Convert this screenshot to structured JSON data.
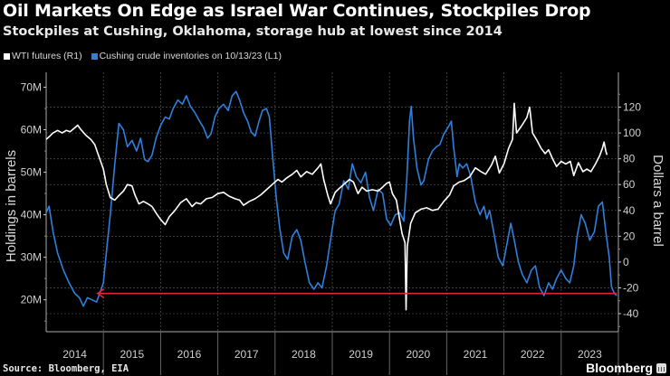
{
  "header": {
    "title": "Oil Markets On Edge as Israel War Continues, Stockpiles Drop",
    "subtitle": "Stockpiles at Cushing, Oklahoma, storage hub at lowest since 2014"
  },
  "footer": {
    "source": "Source: Bloomberg, EIA",
    "brand": "Bloomberg"
  },
  "colors": {
    "background": "#000000",
    "wti": "#ffffff",
    "cushing": "#2f7fdc",
    "arrow": "#e0253c",
    "grid": "#555555"
  },
  "chart_data": {
    "type": "line",
    "title": "Oil Markets On Edge as Israel War Continues, Stockpiles Drop",
    "subtitle": "Stockpiles at Cushing, Oklahoma, storage hub at lowest since 2014",
    "xlabel": "",
    "ylabel_left": "Holdings in barrels",
    "ylabel_right": "Dollars a barrel",
    "x_tick_labels": [
      "2014",
      "2015",
      "2016",
      "2017",
      "2018",
      "2019",
      "2020",
      "2021",
      "2022",
      "2023"
    ],
    "xlim": [
      2014.0,
      2024.0
    ],
    "ylim_left": [
      12.5,
      73.5
    ],
    "ylim_right": [
      -54,
      147
    ],
    "left_ticks": [
      20,
      30,
      40,
      50,
      60,
      70
    ],
    "left_tick_labels": [
      "20M",
      "30M",
      "40M",
      "50M",
      "60M",
      "70M"
    ],
    "right_ticks": [
      -40,
      -20,
      0,
      20,
      40,
      60,
      80,
      100,
      120
    ],
    "right_tick_labels": [
      "-40",
      "-20",
      "0",
      "20",
      "40",
      "60",
      "80",
      "100",
      "120"
    ],
    "grid": true,
    "legend_position": "top-left",
    "series": [
      {
        "name": "WTI futures (R1)",
        "axis": "right",
        "unit": "USD per barrel",
        "points": [
          [
            2014.0,
            95
          ],
          [
            2014.05,
            97
          ],
          [
            2014.12,
            100
          ],
          [
            2014.2,
            102
          ],
          [
            2014.28,
            100
          ],
          [
            2014.35,
            102
          ],
          [
            2014.42,
            101
          ],
          [
            2014.5,
            104
          ],
          [
            2014.55,
            106
          ],
          [
            2014.6,
            103
          ],
          [
            2014.7,
            98
          ],
          [
            2014.78,
            95
          ],
          [
            2014.85,
            91
          ],
          [
            2014.92,
            82
          ],
          [
            2015.0,
            72
          ],
          [
            2015.05,
            60
          ],
          [
            2015.12,
            50
          ],
          [
            2015.2,
            48
          ],
          [
            2015.26,
            51
          ],
          [
            2015.35,
            55
          ],
          [
            2015.42,
            60
          ],
          [
            2015.5,
            59
          ],
          [
            2015.55,
            52
          ],
          [
            2015.62,
            45
          ],
          [
            2015.7,
            47
          ],
          [
            2015.78,
            45
          ],
          [
            2015.85,
            43
          ],
          [
            2015.92,
            38
          ],
          [
            2016.0,
            33
          ],
          [
            2016.08,
            29
          ],
          [
            2016.15,
            35
          ],
          [
            2016.25,
            40
          ],
          [
            2016.35,
            46
          ],
          [
            2016.45,
            49
          ],
          [
            2016.55,
            43
          ],
          [
            2016.62,
            46
          ],
          [
            2016.7,
            45
          ],
          [
            2016.8,
            49
          ],
          [
            2016.9,
            50
          ],
          [
            2017.0,
            53
          ],
          [
            2017.1,
            54
          ],
          [
            2017.2,
            51
          ],
          [
            2017.3,
            49
          ],
          [
            2017.38,
            48
          ],
          [
            2017.45,
            44
          ],
          [
            2017.55,
            47
          ],
          [
            2017.65,
            49
          ],
          [
            2017.75,
            52
          ],
          [
            2017.85,
            56
          ],
          [
            2017.95,
            60
          ],
          [
            2018.05,
            64
          ],
          [
            2018.12,
            62
          ],
          [
            2018.2,
            65
          ],
          [
            2018.3,
            68
          ],
          [
            2018.38,
            71
          ],
          [
            2018.45,
            66
          ],
          [
            2018.55,
            70
          ],
          [
            2018.65,
            68
          ],
          [
            2018.75,
            73
          ],
          [
            2018.8,
            76
          ],
          [
            2018.85,
            64
          ],
          [
            2018.92,
            52
          ],
          [
            2018.97,
            45
          ],
          [
            2019.05,
            54
          ],
          [
            2019.12,
            57
          ],
          [
            2019.2,
            60
          ],
          [
            2019.3,
            64
          ],
          [
            2019.37,
            62
          ],
          [
            2019.45,
            53
          ],
          [
            2019.52,
            58
          ],
          [
            2019.6,
            55
          ],
          [
            2019.7,
            56
          ],
          [
            2019.8,
            55
          ],
          [
            2019.88,
            58
          ],
          [
            2019.95,
            61
          ],
          [
            2020.0,
            62
          ],
          [
            2020.05,
            53
          ],
          [
            2020.12,
            48
          ],
          [
            2020.18,
            32
          ],
          [
            2020.22,
            22
          ],
          [
            2020.27,
            15
          ],
          [
            2020.29,
            -37
          ],
          [
            2020.31,
            12
          ],
          [
            2020.37,
            30
          ],
          [
            2020.45,
            38
          ],
          [
            2020.55,
            41
          ],
          [
            2020.65,
            42
          ],
          [
            2020.75,
            40
          ],
          [
            2020.85,
            41
          ],
          [
            2020.95,
            47
          ],
          [
            2021.05,
            52
          ],
          [
            2021.12,
            59
          ],
          [
            2021.22,
            62
          ],
          [
            2021.3,
            63
          ],
          [
            2021.4,
            66
          ],
          [
            2021.5,
            73
          ],
          [
            2021.6,
            70
          ],
          [
            2021.68,
            68
          ],
          [
            2021.78,
            75
          ],
          [
            2021.85,
            82
          ],
          [
            2021.92,
            69
          ],
          [
            2022.0,
            76
          ],
          [
            2022.08,
            88
          ],
          [
            2022.15,
            95
          ],
          [
            2022.18,
            123
          ],
          [
            2022.22,
            100
          ],
          [
            2022.3,
            105
          ],
          [
            2022.4,
            112
          ],
          [
            2022.45,
            120
          ],
          [
            2022.5,
            100
          ],
          [
            2022.58,
            94
          ],
          [
            2022.65,
            88
          ],
          [
            2022.72,
            84
          ],
          [
            2022.78,
            87
          ],
          [
            2022.85,
            80
          ],
          [
            2022.92,
            74
          ],
          [
            2023.0,
            78
          ],
          [
            2023.08,
            76
          ],
          [
            2023.16,
            78
          ],
          [
            2023.22,
            67
          ],
          [
            2023.3,
            77
          ],
          [
            2023.38,
            70
          ],
          [
            2023.45,
            72
          ],
          [
            2023.52,
            70
          ],
          [
            2023.6,
            76
          ],
          [
            2023.67,
            82
          ],
          [
            2023.72,
            88
          ],
          [
            2023.75,
            93
          ],
          [
            2023.78,
            86
          ],
          [
            2023.8,
            83
          ]
        ]
      },
      {
        "name": "Cushing crude inventories on 10/13/23 (L1)",
        "axis": "left",
        "unit": "million barrels",
        "points": [
          [
            2014.0,
            40.5
          ],
          [
            2014.05,
            42
          ],
          [
            2014.12,
            36
          ],
          [
            2014.2,
            31
          ],
          [
            2014.3,
            27
          ],
          [
            2014.4,
            24
          ],
          [
            2014.5,
            21.5
          ],
          [
            2014.58,
            20.5
          ],
          [
            2014.65,
            18.5
          ],
          [
            2014.72,
            20.5
          ],
          [
            2014.8,
            20
          ],
          [
            2014.88,
            19.5
          ],
          [
            2014.95,
            22
          ],
          [
            2015.0,
            24
          ],
          [
            2015.05,
            31
          ],
          [
            2015.12,
            40
          ],
          [
            2015.2,
            52
          ],
          [
            2015.27,
            61.5
          ],
          [
            2015.35,
            60
          ],
          [
            2015.42,
            56
          ],
          [
            2015.5,
            57.5
          ],
          [
            2015.58,
            55
          ],
          [
            2015.65,
            58
          ],
          [
            2015.72,
            53
          ],
          [
            2015.78,
            52.5
          ],
          [
            2015.85,
            54
          ],
          [
            2015.92,
            58
          ],
          [
            2016.0,
            61
          ],
          [
            2016.08,
            63
          ],
          [
            2016.15,
            62.5
          ],
          [
            2016.22,
            65
          ],
          [
            2016.3,
            67
          ],
          [
            2016.38,
            66
          ],
          [
            2016.45,
            68
          ],
          [
            2016.52,
            65.5
          ],
          [
            2016.6,
            64
          ],
          [
            2016.68,
            62
          ],
          [
            2016.75,
            60.5
          ],
          [
            2016.82,
            58
          ],
          [
            2016.88,
            59
          ],
          [
            2016.95,
            63
          ],
          [
            2017.02,
            65
          ],
          [
            2017.1,
            66
          ],
          [
            2017.18,
            64.5
          ],
          [
            2017.25,
            68
          ],
          [
            2017.32,
            69
          ],
          [
            2017.38,
            67
          ],
          [
            2017.45,
            64
          ],
          [
            2017.52,
            62
          ],
          [
            2017.58,
            59.5
          ],
          [
            2017.65,
            58.5
          ],
          [
            2017.72,
            62
          ],
          [
            2017.78,
            64.5
          ],
          [
            2017.85,
            65
          ],
          [
            2017.9,
            63
          ],
          [
            2017.95,
            55
          ],
          [
            2018.02,
            44
          ],
          [
            2018.08,
            37
          ],
          [
            2018.15,
            31
          ],
          [
            2018.22,
            29.5
          ],
          [
            2018.3,
            35
          ],
          [
            2018.38,
            36.5
          ],
          [
            2018.45,
            34
          ],
          [
            2018.52,
            29
          ],
          [
            2018.6,
            24
          ],
          [
            2018.68,
            22.5
          ],
          [
            2018.75,
            24
          ],
          [
            2018.82,
            22.8
          ],
          [
            2018.9,
            28
          ],
          [
            2018.98,
            35
          ],
          [
            2019.05,
            41
          ],
          [
            2019.12,
            42.5
          ],
          [
            2019.2,
            48
          ],
          [
            2019.28,
            46
          ],
          [
            2019.35,
            52
          ],
          [
            2019.42,
            49
          ],
          [
            2019.5,
            47.5
          ],
          [
            2019.58,
            50
          ],
          [
            2019.65,
            44
          ],
          [
            2019.72,
            41
          ],
          [
            2019.8,
            46
          ],
          [
            2019.88,
            45
          ],
          [
            2019.95,
            39
          ],
          [
            2020.02,
            37.5
          ],
          [
            2020.1,
            40
          ],
          [
            2020.18,
            40.5
          ],
          [
            2020.25,
            38.5
          ],
          [
            2020.3,
            48
          ],
          [
            2020.35,
            62
          ],
          [
            2020.38,
            65.5
          ],
          [
            2020.42,
            58
          ],
          [
            2020.48,
            51
          ],
          [
            2020.55,
            47
          ],
          [
            2020.6,
            48
          ],
          [
            2020.68,
            53
          ],
          [
            2020.75,
            55
          ],
          [
            2020.82,
            56
          ],
          [
            2020.88,
            56.5
          ],
          [
            2020.95,
            59
          ],
          [
            2021.02,
            60.5
          ],
          [
            2021.08,
            62
          ],
          [
            2021.12,
            56
          ],
          [
            2021.18,
            49
          ],
          [
            2021.22,
            52
          ],
          [
            2021.28,
            51
          ],
          [
            2021.35,
            52
          ],
          [
            2021.42,
            49
          ],
          [
            2021.5,
            43
          ],
          [
            2021.58,
            40
          ],
          [
            2021.65,
            42
          ],
          [
            2021.7,
            39
          ],
          [
            2021.75,
            41
          ],
          [
            2021.82,
            36
          ],
          [
            2021.9,
            30
          ],
          [
            2021.98,
            28
          ],
          [
            2022.05,
            33
          ],
          [
            2022.12,
            38
          ],
          [
            2022.18,
            34
          ],
          [
            2022.25,
            29
          ],
          [
            2022.32,
            26
          ],
          [
            2022.4,
            24
          ],
          [
            2022.48,
            27
          ],
          [
            2022.55,
            28
          ],
          [
            2022.62,
            23
          ],
          [
            2022.7,
            21
          ],
          [
            2022.78,
            24
          ],
          [
            2022.85,
            22.5
          ],
          [
            2022.92,
            25
          ],
          [
            2023.0,
            27
          ],
          [
            2023.08,
            25
          ],
          [
            2023.15,
            24
          ],
          [
            2023.22,
            28
          ],
          [
            2023.28,
            35
          ],
          [
            2023.35,
            40
          ],
          [
            2023.42,
            38
          ],
          [
            2023.5,
            34
          ],
          [
            2023.58,
            36
          ],
          [
            2023.65,
            42
          ],
          [
            2023.72,
            43
          ],
          [
            2023.78,
            36
          ],
          [
            2023.84,
            30
          ],
          [
            2023.88,
            23
          ],
          [
            2023.93,
            21.5
          ],
          [
            2023.97,
            21
          ]
        ]
      }
    ],
    "annotations": [
      {
        "type": "arrow",
        "label": "lowest since 2014",
        "from_x": 2023.97,
        "to_x": 2014.9,
        "y": 21.5,
        "axis": "left",
        "color": "#e0253c"
      }
    ]
  }
}
